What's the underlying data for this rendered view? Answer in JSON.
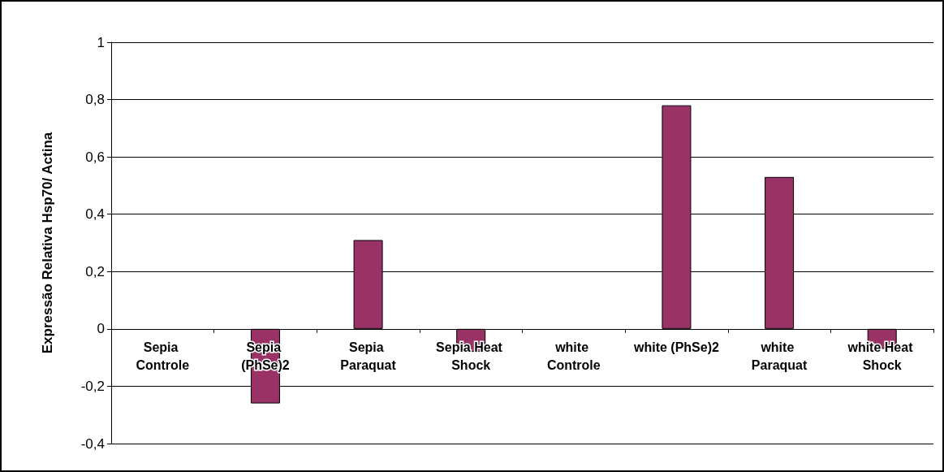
{
  "chart_data": {
    "type": "bar",
    "ylabel": "Expressão Relativa Hsp70/ Actina",
    "categories": [
      "Sepia Controle",
      "Sepia (PhSe)2",
      "Sepia Paraquat",
      "Sepia Heat Shock",
      "white Controle",
      "white (PhSe)2",
      "white Paraquat",
      "white Heat Shock"
    ],
    "values": [
      0,
      -0.26,
      0.31,
      -0.08,
      0,
      0.78,
      0.53,
      -0.07
    ],
    "color": "#993366",
    "ylim": [
      -0.4,
      1
    ],
    "yticks": [
      {
        "value": -0.4,
        "label": "-0,4"
      },
      {
        "value": -0.2,
        "label": "-0,2"
      },
      {
        "value": 0,
        "label": "0"
      },
      {
        "value": 0.2,
        "label": "0,2"
      },
      {
        "value": 0.4,
        "label": "0,4"
      },
      {
        "value": 0.6,
        "label": "0,6"
      },
      {
        "value": 0.8,
        "label": "0,8"
      },
      {
        "value": 1,
        "label": "1"
      }
    ],
    "grid": "y"
  }
}
